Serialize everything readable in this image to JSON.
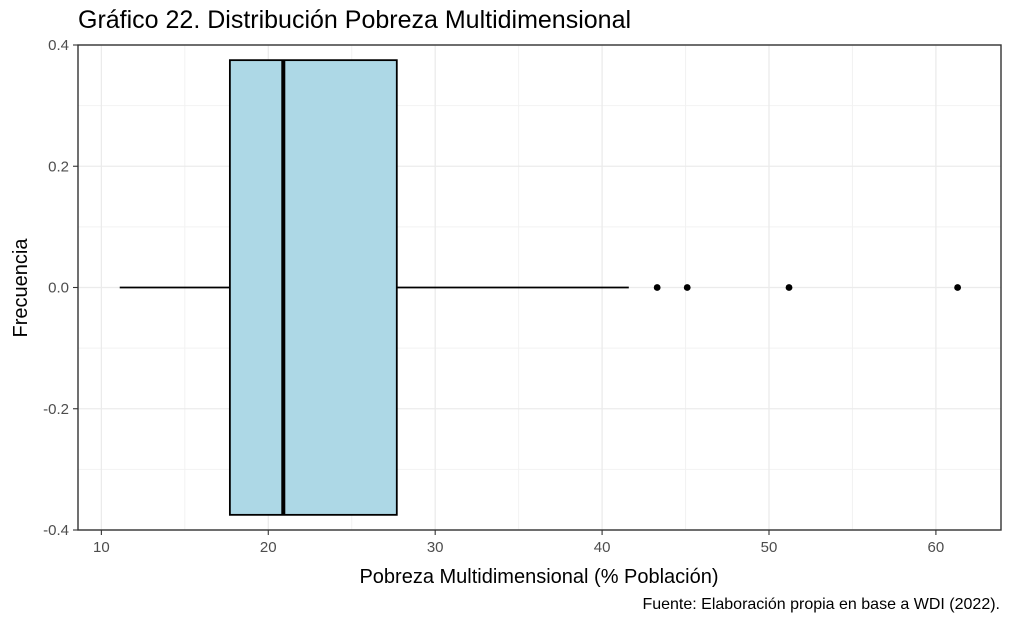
{
  "chart_data": {
    "type": "boxplot",
    "title": "Gráfico 22. Distribución Pobreza Multidimensional",
    "xlabel": "Pobreza Multidimensional (% Población)",
    "ylabel": "Frecuencia",
    "caption": "Fuente: Elaboración propia en base a WDI (2022).",
    "xlim": [
      8.6,
      63.9
    ],
    "ylim": [
      -0.4,
      0.4
    ],
    "x_ticks": [
      10,
      20,
      30,
      40,
      50,
      60
    ],
    "y_ticks": [
      -0.4,
      -0.2,
      0.0,
      0.2,
      0.4
    ],
    "y_tick_labels": [
      "-0.4",
      "-0.2",
      "0.0",
      "0.2",
      "0.4"
    ],
    "box": {
      "whisker_low": 11.1,
      "q1": 17.7,
      "median": 20.9,
      "q3": 27.7,
      "whisker_high": 41.6,
      "outliers": [
        43.3,
        45.1,
        51.2,
        61.3
      ],
      "y_center": 0.0,
      "half_width": 0.375
    },
    "fill_color": "#add8e6",
    "grid": true,
    "legend": "none"
  }
}
